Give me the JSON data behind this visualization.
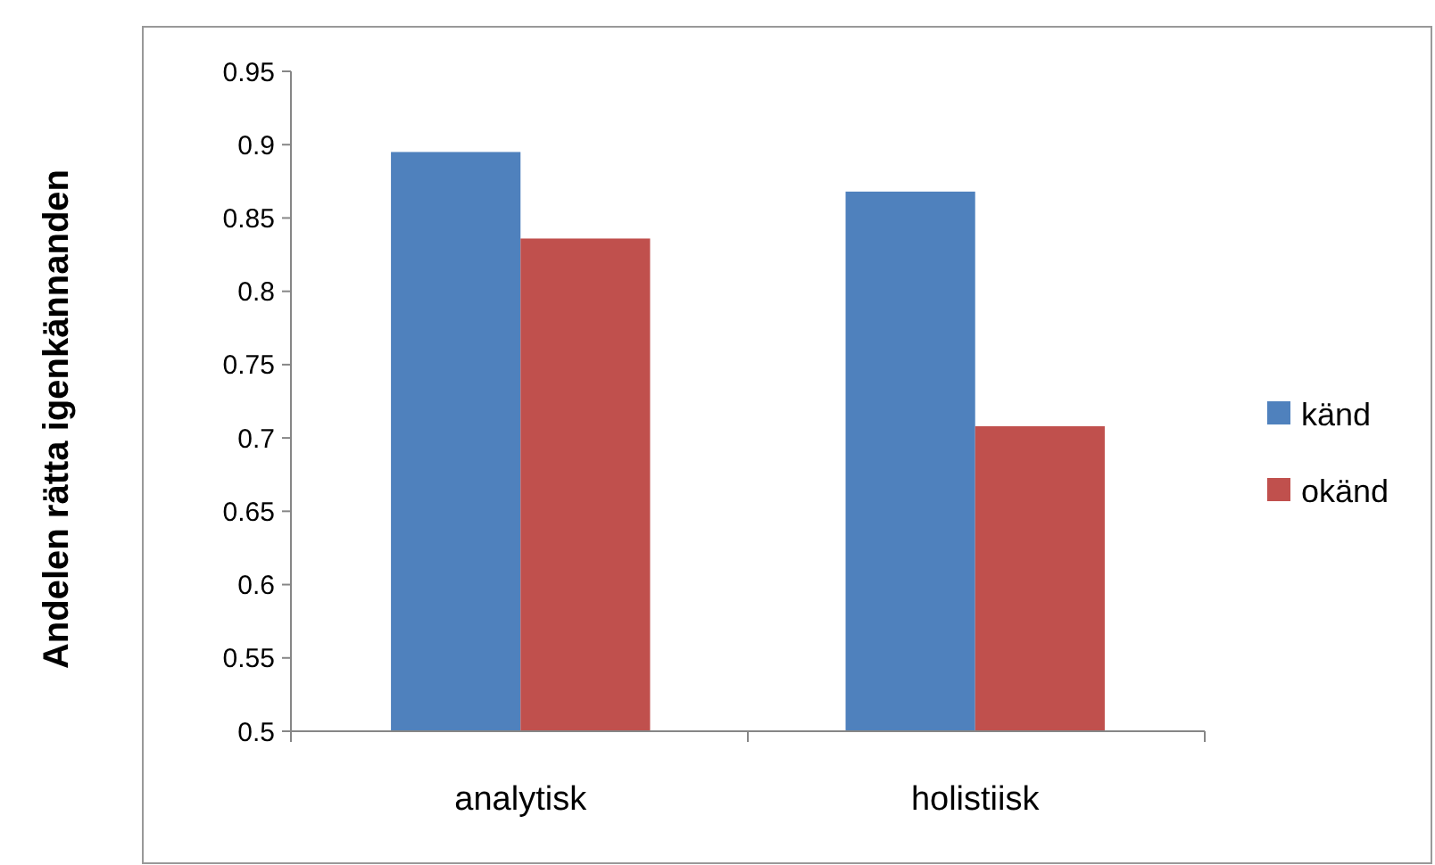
{
  "chart_data": {
    "type": "bar",
    "ylabel": "Andelen rätta igenkännanden",
    "categories": [
      "analytisk",
      "holistiisk"
    ],
    "series": [
      {
        "name": "känd",
        "color": "#4f81bd",
        "values": [
          0.895,
          0.868
        ]
      },
      {
        "name": "okänd",
        "color": "#c0504d",
        "values": [
          0.836,
          0.708
        ]
      }
    ],
    "ylim": [
      0.5,
      0.95
    ],
    "yticks": [
      0.5,
      0.55,
      0.6,
      0.65,
      0.7,
      0.75,
      0.8,
      0.85,
      0.9,
      0.95
    ],
    "grid": false,
    "legend": "right"
  }
}
